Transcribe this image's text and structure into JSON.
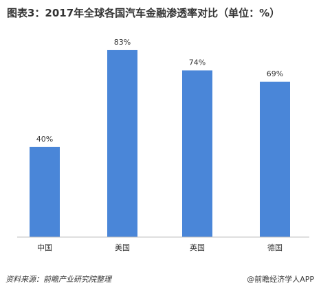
{
  "chart_data": {
    "type": "bar",
    "title": "图表3：2017年全球各国汽车金融渗透率对比（单位：%）",
    "categories": [
      "中国",
      "美国",
      "英国",
      "德国"
    ],
    "values": [
      40,
      83,
      74,
      69
    ],
    "value_labels": [
      "40%",
      "83%",
      "74%",
      "69%"
    ],
    "ylim": [
      0,
      90
    ],
    "grid": false,
    "bar_color": "#4a86d8"
  },
  "footer": {
    "source": "资料来源：前瞻产业研究院整理",
    "brand": "@前瞻经济学人APP"
  }
}
